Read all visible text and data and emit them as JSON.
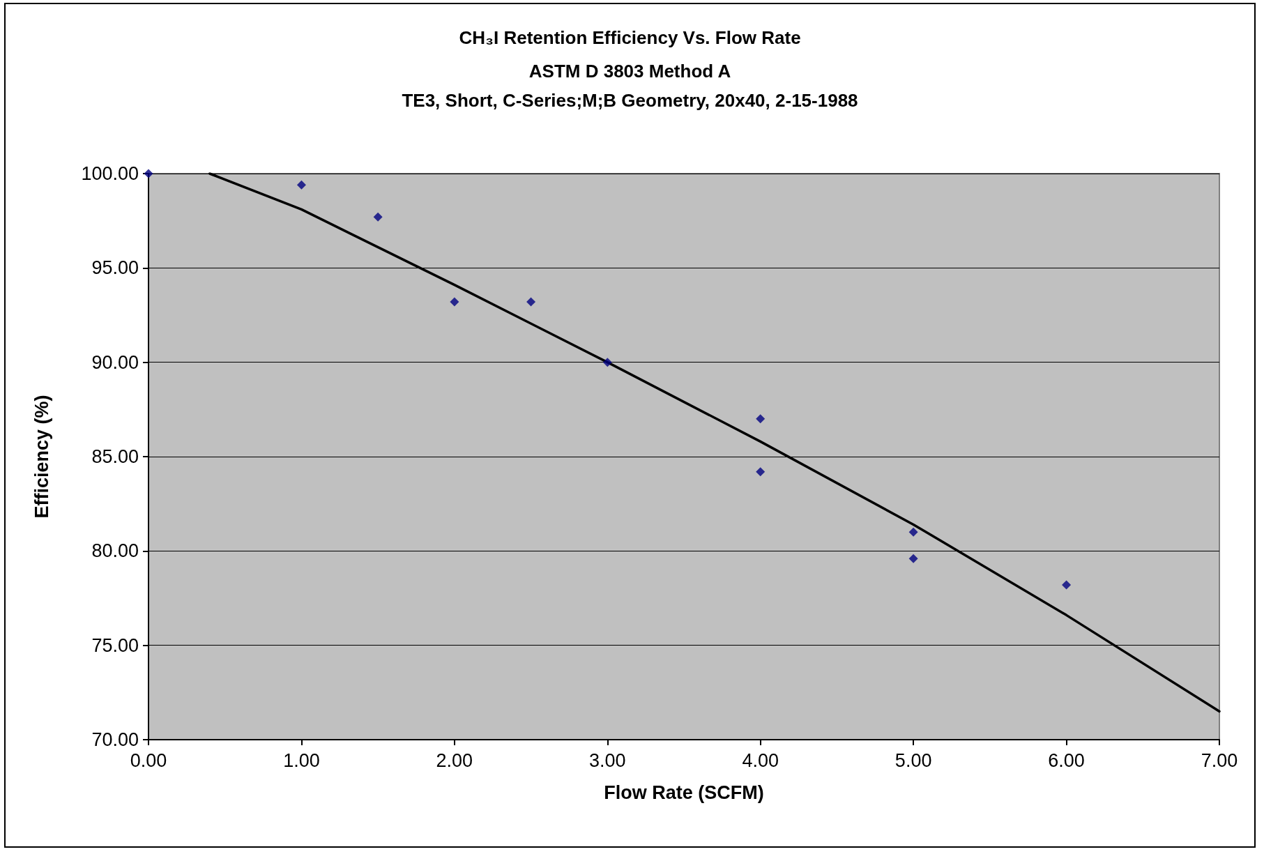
{
  "chart_data": {
    "type": "scatter",
    "title": "CH₃I Retention Efficiency Vs. Flow Rate",
    "subtitle": "ASTM D 3803 Method A\nTE3, Short, C-Series;M;B Geometry, 20x40, 2-15-1988",
    "xlabel": "Flow Rate (SCFM)",
    "ylabel": "Efficiency (%)",
    "series": [
      {
        "color": "#000080",
        "marker": "diamond",
        "x": [
          0,
          1,
          1.5,
          2,
          2.5,
          3,
          4,
          4,
          5,
          5,
          6
        ],
        "values": [
          100,
          99.4,
          97.7,
          93.2,
          93.2,
          90.0,
          87.0,
          84.2,
          81.0,
          79.6,
          78.2
        ]
      },
      {
        "type": "line",
        "color": "#000000",
        "marker": "none",
        "line_style": "solid",
        "x": [
          0.4,
          1,
          2,
          3,
          4,
          5,
          6,
          7
        ],
        "values": [
          100,
          98.1,
          94.1,
          90.0,
          85.8,
          81.4,
          76.6,
          71.5
        ]
      }
    ],
    "xlim": [
      0,
      7
    ],
    "ylim": [
      70,
      100
    ],
    "xticks": [
      {
        "value": 0,
        "label": "0.00"
      },
      {
        "value": 1,
        "label": "1.00"
      },
      {
        "value": 2,
        "label": "2.00"
      },
      {
        "value": 3,
        "label": "3.00"
      },
      {
        "value": 4,
        "label": "4.00"
      },
      {
        "value": 5,
        "label": "5.00"
      },
      {
        "value": 6,
        "label": "6.00"
      },
      {
        "value": 7,
        "label": "7.00"
      }
    ],
    "yticks": [
      {
        "value": 70,
        "label": "70.00"
      },
      {
        "value": 75,
        "label": "75.00"
      },
      {
        "value": 80,
        "label": "80.00"
      },
      {
        "value": 85,
        "label": "85.00"
      },
      {
        "value": 90,
        "label": "90.00"
      },
      {
        "value": 95,
        "label": "95.00"
      },
      {
        "value": 100,
        "label": "100.00"
      }
    ],
    "grid": "y"
  }
}
